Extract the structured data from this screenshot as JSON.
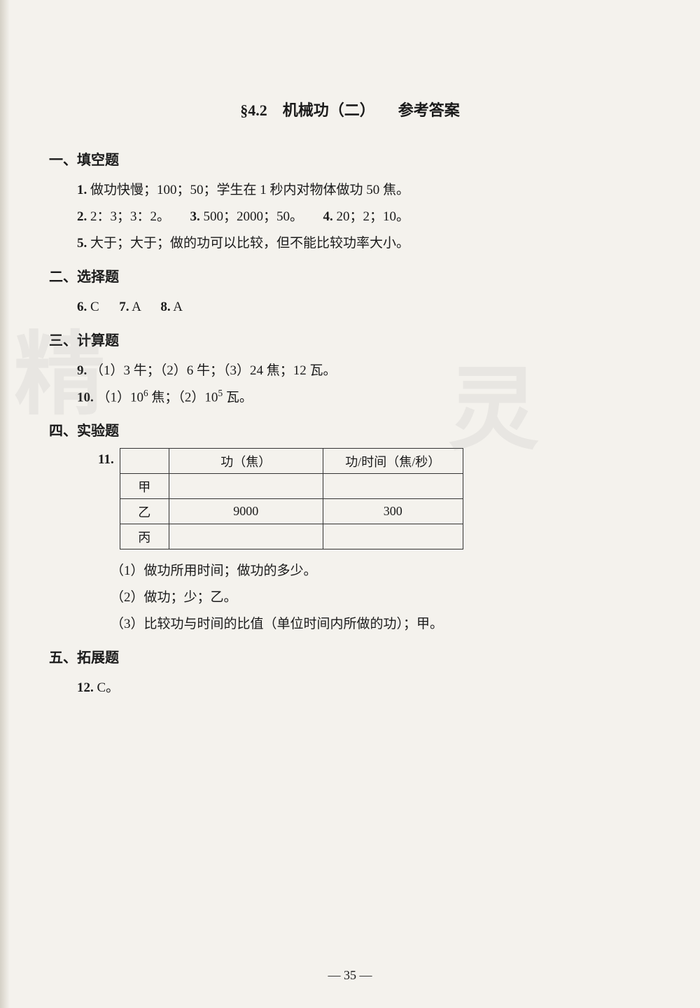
{
  "page": {
    "title_section": "§4.2",
    "title_topic": "机械功（二）",
    "title_answers": "参考答案",
    "page_number": "— 35 —",
    "background_color": "#f4f2ed",
    "text_color": "#1a1a1a"
  },
  "sections": {
    "s1": {
      "heading": "一、填空题",
      "q1": {
        "num": "1.",
        "text": "做功快慢；100；50；学生在 1 秒内对物体做功 50 焦。"
      },
      "q2": {
        "num": "2.",
        "text": "2：3；3：2。"
      },
      "q3": {
        "num": "3.",
        "text": "500；2000；50。"
      },
      "q4": {
        "num": "4.",
        "text": "20；2；10。"
      },
      "q5": {
        "num": "5.",
        "text": "大于；大于；做的功可以比较，但不能比较功率大小。"
      }
    },
    "s2": {
      "heading": "二、选择题",
      "q6": {
        "num": "6.",
        "text": "C"
      },
      "q7": {
        "num": "7.",
        "text": "A"
      },
      "q8": {
        "num": "8.",
        "text": "A"
      }
    },
    "s3": {
      "heading": "三、计算题",
      "q9": {
        "num": "9.",
        "text": "（1）3 牛；（2）6 牛；（3）24 焦；12 瓦。"
      },
      "q10": {
        "num": "10.",
        "text_prefix": "（1）10",
        "exp1": "6",
        "text_mid": " 焦；（2）10",
        "exp2": "5",
        "text_suffix": " 瓦。"
      }
    },
    "s4": {
      "heading": "四、实验题",
      "q11": {
        "num": "11.",
        "table": {
          "headers": {
            "h1": "",
            "h2": "功（焦）",
            "h3": "功/时间（焦/秒）"
          },
          "rows": [
            {
              "label": "甲",
              "c2": "",
              "c3": ""
            },
            {
              "label": "乙",
              "c2": "9000",
              "c3": "300"
            },
            {
              "label": "丙",
              "c2": "",
              "c3": ""
            }
          ]
        },
        "sub1": "（1）做功所用时间；做功的多少。",
        "sub2": "（2）做功；少；乙。",
        "sub3": "（3）比较功与时间的比值（单位时间内所做的功）；甲。"
      }
    },
    "s5": {
      "heading": "五、拓展题",
      "q12": {
        "num": "12.",
        "text": "C。"
      }
    }
  },
  "watermark": {
    "text1": "精",
    "text2": "灵"
  }
}
